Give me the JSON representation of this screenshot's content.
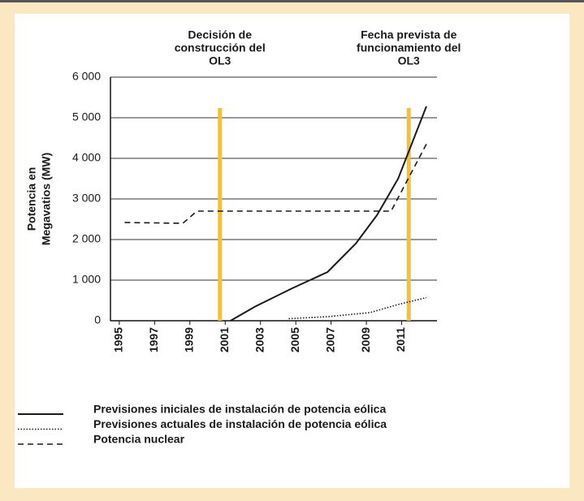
{
  "chart_data": {
    "type": "line",
    "ylabel": [
      "Potencia en",
      "Megavatios (MW)"
    ],
    "xlim": [
      1994.5,
      2013
    ],
    "ylim": [
      0,
      6000
    ],
    "xticks": [
      1995,
      1997,
      1999,
      2001,
      2003,
      2005,
      2007,
      2009,
      2011
    ],
    "yticks": [
      0,
      {
        "value": 1000,
        "label": "1 000"
      },
      {
        "value": 2000,
        "label": "2 000"
      },
      {
        "value": 3000,
        "label": "3 000"
      },
      {
        "value": 4000,
        "label": "4 000"
      },
      {
        "value": 5000,
        "label": "5 000"
      },
      {
        "value": 6000,
        "label": "6 000"
      }
    ],
    "grid": true,
    "annotations": [
      {
        "x": 2000.7,
        "lines": [
          "Decisión de",
          "construcción del",
          "OL3"
        ],
        "color": "#f2c03c"
      },
      {
        "x": 2011.4,
        "lines": [
          "Fecha prevista de",
          "funcionamiento del",
          "OL3"
        ],
        "color": "#f2c03c"
      }
    ],
    "series": [
      {
        "name": "Previsiones iniciales de instalación de potencia eólica",
        "color": "#1a1a1a",
        "style": "solid",
        "x": [
          2001.3,
          2002.7,
          2004.8,
          2006.8,
          2008.4,
          2009.6,
          2010.8,
          2012.4
        ],
        "values": [
          0,
          350,
          800,
          1200,
          1900,
          2600,
          3500,
          5280
        ]
      },
      {
        "name": "Previsiones actuales de instalación de potencia eólica",
        "color": "#1a1a1a",
        "style": "dotted",
        "x": [
          2004.6,
          2006.8,
          2009.2,
          2010.8,
          2012.4
        ],
        "values": [
          50,
          100,
          200,
          400,
          570
        ]
      },
      {
        "name": "Potencia nuclear",
        "color": "#1a1a1a",
        "style": "dashed",
        "x": [
          1995.3,
          1998.6,
          1999.4,
          2010.4,
          2012.4
        ],
        "values": [
          2420,
          2400,
          2700,
          2700,
          4350
        ]
      }
    ]
  }
}
